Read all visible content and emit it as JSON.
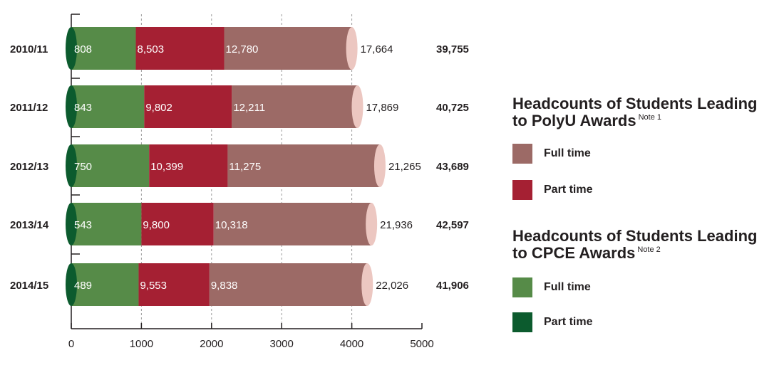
{
  "chart_data": {
    "type": "bar",
    "orientation": "horizontal",
    "stacked": true,
    "categories": [
      "2010/11",
      "2011/12",
      "2012/13",
      "2013/14",
      "2014/15"
    ],
    "series": [
      {
        "name": "Part time",
        "group": "CPCE",
        "color": "#0c5b2e",
        "values": [
          0,
          0,
          0,
          0,
          0
        ]
      },
      {
        "name": "Full time",
        "group": "CPCE",
        "color": "#568b48",
        "values": [
          808,
          843,
          750,
          543,
          489
        ]
      },
      {
        "name": "Part time",
        "group": "PolyU",
        "color": "#a52033",
        "values": [
          8503,
          9802,
          10399,
          9800,
          9553
        ]
      },
      {
        "name": "Full time",
        "group": "PolyU",
        "color": "#9c6a66",
        "values": [
          12780,
          12211,
          11275,
          10318,
          9838
        ]
      },
      {
        "name": "",
        "color": "#ecc7c1",
        "values": [
          17664,
          17869,
          21265,
          21936,
          22026
        ]
      }
    ],
    "segment_labels": [
      [
        "808",
        "8,503",
        "12,780",
        "17,664"
      ],
      [
        "843",
        "9,802",
        "12,211",
        "17,869"
      ],
      [
        "750",
        "10,399",
        "11,275",
        "21,265"
      ],
      [
        "543",
        "9,800",
        "10,318",
        "21,936"
      ],
      [
        "489",
        "9,553",
        "9,838",
        "22,026"
      ]
    ],
    "bar_scale_extents": [
      [
        0,
        920,
        2180,
        4000
      ],
      [
        0,
        1040,
        2290,
        4080
      ],
      [
        0,
        1110,
        2230,
        4400
      ],
      [
        0,
        1000,
        2030,
        4280
      ],
      [
        0,
        960,
        1970,
        4220
      ]
    ],
    "totals": [
      "39,755",
      "40,725",
      "43,689",
      "42,597",
      "41,906"
    ],
    "xticks": [
      "0",
      "1000",
      "2000",
      "3000",
      "4000",
      "5000"
    ],
    "xlim": [
      0,
      5000
    ],
    "grid": true,
    "legend_position": "right"
  },
  "legend": {
    "polyu": {
      "title_line1": "Headcounts of Students Leading",
      "title_line2": "to PolyU Awards",
      "note": "Note 1",
      "items": [
        {
          "label": "Full time",
          "color": "#9c6a66"
        },
        {
          "label": "Part time",
          "color": "#a52033"
        }
      ]
    },
    "cpce": {
      "title_line1": "Headcounts of Students Leading",
      "title_line2": "to CPCE Awards",
      "note": "Note 2",
      "items": [
        {
          "label": "Full time",
          "color": "#568b48"
        },
        {
          "label": "Part time",
          "color": "#0c5b2e"
        }
      ]
    }
  }
}
